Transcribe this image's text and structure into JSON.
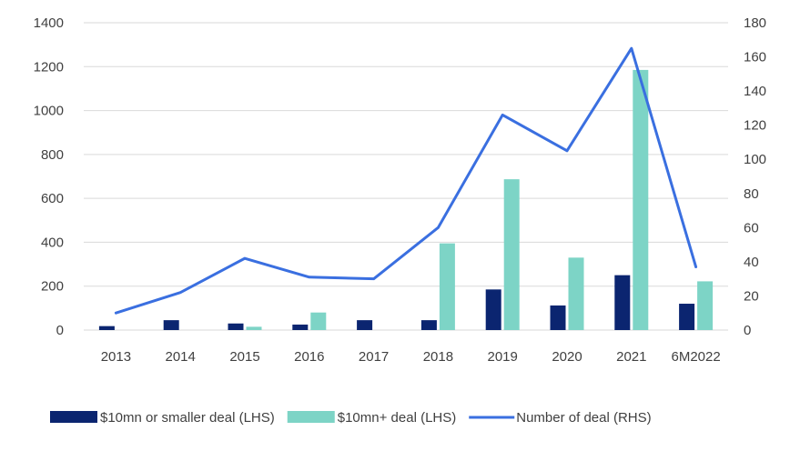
{
  "chart_data": {
    "type": "bar",
    "categories": [
      "2013",
      "2014",
      "2015",
      "2016",
      "2017",
      "2018",
      "2019",
      "2020",
      "2021",
      "6M2022"
    ],
    "series": [
      {
        "name": "$10mn or smaller deal (LHS)",
        "type": "bar",
        "axis": "left",
        "color": "#0b2570",
        "values": [
          18,
          45,
          30,
          25,
          45,
          45,
          185,
          112,
          250,
          120
        ]
      },
      {
        "name": "$10mn+ deal (LHS)",
        "type": "bar",
        "axis": "left",
        "color": "#7dd4c6",
        "values": [
          0,
          0,
          15,
          80,
          0,
          395,
          687,
          330,
          1185,
          222
        ]
      },
      {
        "name": "Number of deal (RHS)",
        "type": "line",
        "axis": "right",
        "color": "#3a6fe0",
        "values": [
          10,
          22,
          42,
          31,
          30,
          60,
          126,
          105,
          165,
          37
        ]
      }
    ],
    "left_axis": {
      "min": 0,
      "max": 1400,
      "ticks": [
        "0",
        "200",
        "400",
        "600",
        "800",
        "1000",
        "1200",
        "1400"
      ]
    },
    "right_axis": {
      "min": 0,
      "max": 180,
      "ticks": [
        "0",
        "20",
        "40",
        "60",
        "80",
        "100",
        "120",
        "140",
        "160",
        "180"
      ]
    },
    "grid": true,
    "legend_position": "bottom"
  }
}
